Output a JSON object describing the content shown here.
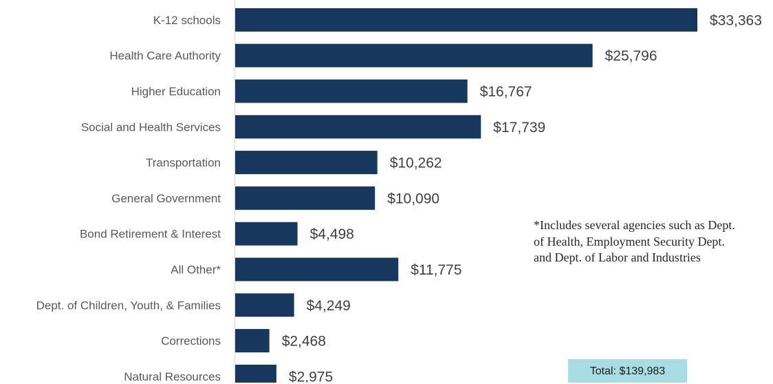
{
  "chart_data": {
    "type": "bar",
    "orientation": "horizontal",
    "categories": [
      "K-12 schools",
      "Health Care Authority",
      "Higher Education",
      "Social and Health Services",
      "Transportation",
      "General Government",
      "Bond Retirement & Interest",
      "All Other*",
      "Dept. of Children, Youth, & Families",
      "Corrections",
      "Natural Resources"
    ],
    "values": [
      33363,
      25796,
      16767,
      17739,
      10262,
      10090,
      4498,
      11775,
      4249,
      2468,
      2975
    ],
    "value_labels": [
      "$33,363",
      "$25,796",
      "$16,767",
      "$17,739",
      "$10,262",
      "$10,090",
      "$4,498",
      "$11,775",
      "$4,249",
      "$2,468",
      "$2,975"
    ],
    "title": "",
    "xlabel": "",
    "ylabel": "",
    "xlim": [
      0,
      34000
    ],
    "grid": false,
    "bar_color": "#17375e"
  },
  "footnote": "*Includes several agencies such as Dept. of Health, Employment Security Dept. and Dept. of Labor and Industries",
  "total": {
    "label": "Total: $139,983",
    "background": "#a8dde3"
  }
}
